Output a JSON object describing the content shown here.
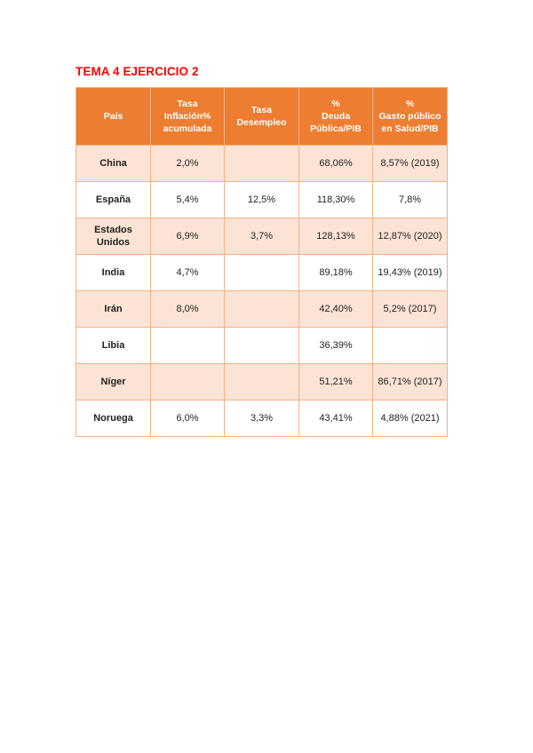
{
  "title": "TEMA 4 EJERCICIO 2",
  "headers": [
    [
      "País"
    ],
    [
      "Tasa",
      "Inflación%",
      "acumulada"
    ],
    [
      "Tasa",
      "Desempleo"
    ],
    [
      "%",
      "Deuda",
      "Pública/PIB"
    ],
    [
      "%",
      "Gasto público",
      "en Salud/PIB"
    ]
  ],
  "rows": [
    {
      "country": [
        "China"
      ],
      "inflation": "2,0%",
      "unemployment": "",
      "debt": "68,06%",
      "health": "8,57% (2019)"
    },
    {
      "country": [
        "España"
      ],
      "inflation": "5,4%",
      "unemployment": "12,5%",
      "debt": "118,30%",
      "health": "7,8%"
    },
    {
      "country": [
        "Estados",
        "Unidos"
      ],
      "inflation": "6,9%",
      "unemployment": "3,7%",
      "debt": "128,13%",
      "health": "12,87% (2020)"
    },
    {
      "country": [
        "India"
      ],
      "inflation": "4,7%",
      "unemployment": "",
      "debt": "89,18%",
      "health": "19,43% (2019)"
    },
    {
      "country": [
        "Irán"
      ],
      "inflation": "8,0%",
      "unemployment": "",
      "debt": "42,40%",
      "health": "5,2% (2017)"
    },
    {
      "country": [
        "Libia"
      ],
      "inflation": "",
      "unemployment": "",
      "debt": "36,39%",
      "health": ""
    },
    {
      "country": [
        "Níger"
      ],
      "inflation": "",
      "unemployment": "",
      "debt": "51,21%",
      "health": "86,71% (2017)"
    },
    {
      "country": [
        "Noruega"
      ],
      "inflation": "6,0%",
      "unemployment": "3,3%",
      "debt": "43,41%",
      "health": "4,88% (2021)"
    }
  ],
  "colors": {
    "title": "#ff0000",
    "header_bg": "#ed7d31",
    "band_bg": "#fbe4d5",
    "border": "#f4b183"
  }
}
